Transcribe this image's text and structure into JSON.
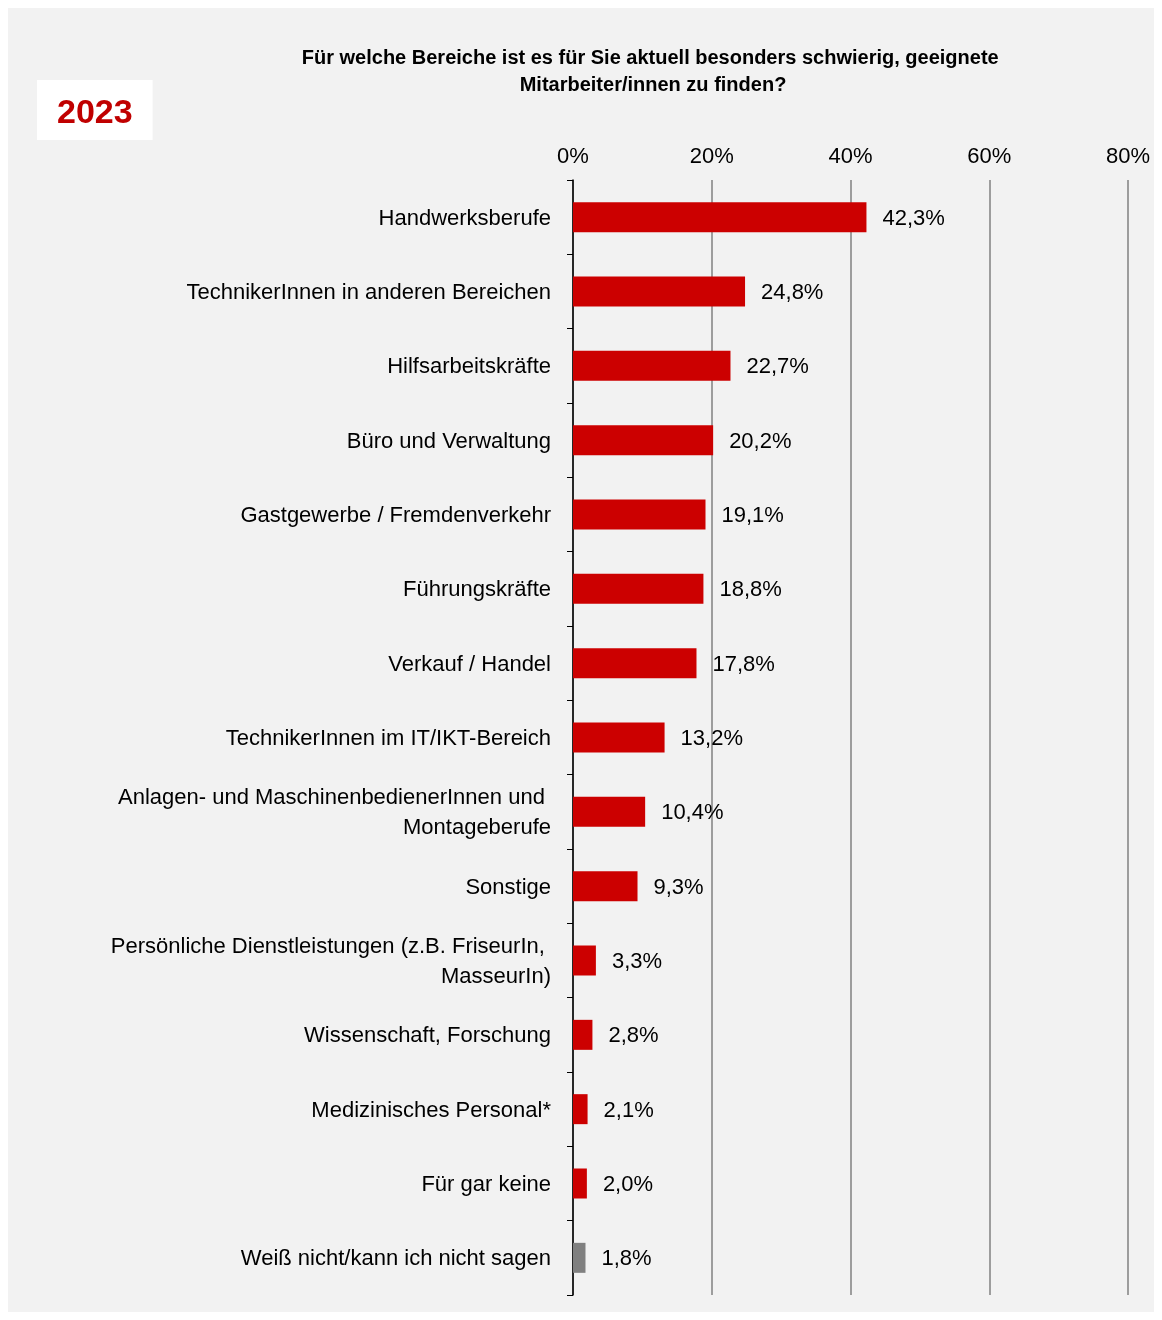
{
  "chart_data": {
    "type": "bar",
    "orientation": "horizontal",
    "title": "Für welche Bereiche ist es für Sie aktuell besonders schwierig, geeignete Mitarbeiter/innen zu finden?",
    "annotations": [
      "2023"
    ],
    "categories": [
      "Handwerksberufe",
      "TechnikerInnen in anderen Bereichen",
      "Hilfsarbeitskräfte",
      "Büro und Verwaltung",
      "Gastgewerbe / Fremdenverkehr",
      "Führungskräfte",
      "Verkauf / Handel",
      "TechnikerInnen im IT/IKT-Bereich",
      "Anlagen- und MaschinenbedienerInnen und Montageberufe",
      "Sonstige",
      "Persönliche Dienstleistungen (z.B. FriseurIn, MasseurIn)",
      "Wissenschaft, Forschung",
      "Medizinisches Personal*",
      "Für gar keine",
      "Weiß nicht/kann ich nicht sagen"
    ],
    "values": [
      42.3,
      24.8,
      22.7,
      20.2,
      19.1,
      18.8,
      17.8,
      13.2,
      10.4,
      9.3,
      3.3,
      2.8,
      2.1,
      2.0,
      1.8
    ],
    "value_labels": [
      "42,3%",
      "24,8%",
      "22,7%",
      "20,2%",
      "19,1%",
      "18,8%",
      "17,8%",
      "13,2%",
      "10,4%",
      "9,3%",
      "3,3%",
      "2,8%",
      "2,1%",
      "2,0%",
      "1,8%"
    ],
    "colors": [
      "#cc0000",
      "#cc0000",
      "#cc0000",
      "#cc0000",
      "#cc0000",
      "#cc0000",
      "#cc0000",
      "#cc0000",
      "#cc0000",
      "#cc0000",
      "#cc0000",
      "#cc0000",
      "#cc0000",
      "#cc0000",
      "#808080"
    ],
    "xlim": [
      0,
      80
    ],
    "xticks": [
      {
        "value": 0,
        "label": "0%"
      },
      {
        "value": 20,
        "label": "20%"
      },
      {
        "value": 40,
        "label": "40%"
      },
      {
        "value": 60,
        "label": "60%"
      },
      {
        "value": 80,
        "label": "80%"
      }
    ],
    "grid": "x"
  }
}
